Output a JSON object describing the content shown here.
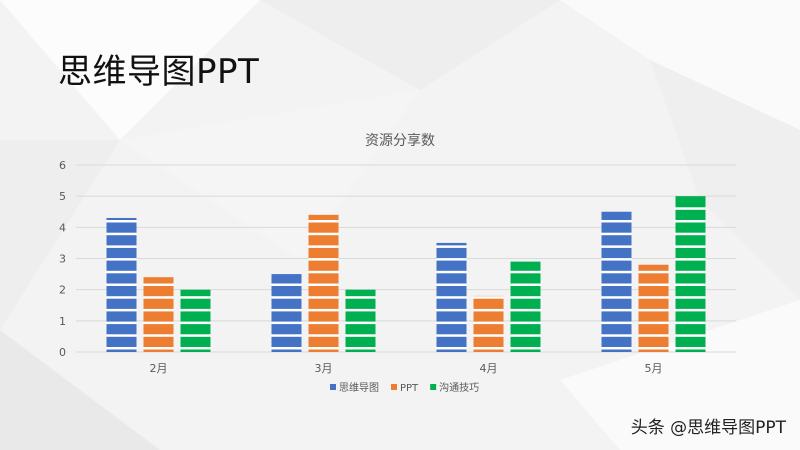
{
  "slide": {
    "title": "思维导图PPT"
  },
  "watermark": "头条 @思维导图PPT",
  "colors": {
    "blue": "#4472c4",
    "orange": "#ed7d31",
    "green": "#00b050"
  },
  "chart_data": {
    "type": "bar",
    "title": "资源分享数",
    "categories": [
      "2月",
      "3月",
      "4月",
      "5月"
    ],
    "ylim": [
      0,
      6
    ],
    "yticks": [
      0,
      1,
      2,
      3,
      4,
      5,
      6
    ],
    "grid": true,
    "legend": "bottom",
    "series": [
      {
        "name": "思维导图",
        "values": [
          4.3,
          2.5,
          3.5,
          4.5
        ],
        "color": "#4472c4"
      },
      {
        "name": "PPT",
        "values": [
          2.4,
          4.4,
          1.8,
          2.8
        ],
        "color": "#ed7d31"
      },
      {
        "name": "沟通技巧",
        "values": [
          2.0,
          2.0,
          2.9,
          5.0
        ],
        "color": "#00b050"
      }
    ]
  }
}
